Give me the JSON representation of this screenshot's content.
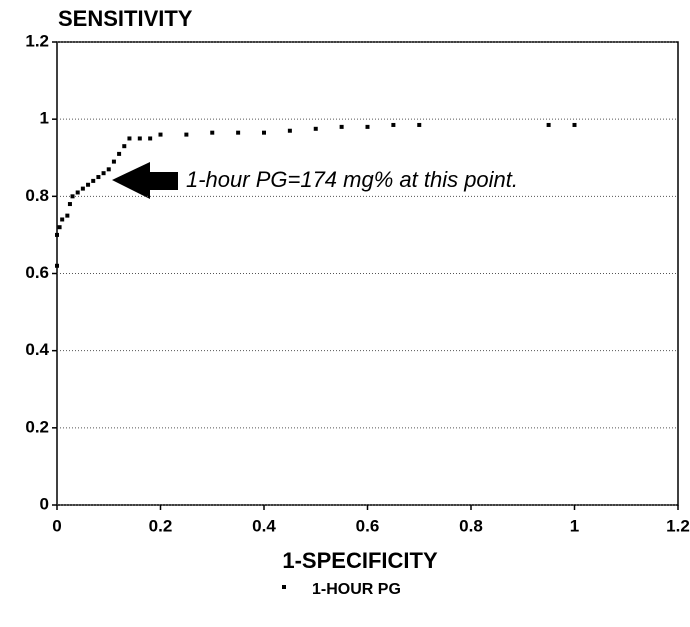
{
  "chart_data": {
    "type": "scatter",
    "title": "SENSITIVITY",
    "x_label": "1-SPECIFICITY",
    "annotation": "1-hour PG=174 mg% at this point.",
    "series": [
      {
        "name": "1-HOUR PG",
        "color": "#000000",
        "x": [
          0,
          0,
          0.005,
          0.01,
          0.02,
          0.025,
          0.03,
          0.04,
          0.05,
          0.06,
          0.07,
          0.08,
          0.09,
          0.1,
          0.11,
          0.12,
          0.13,
          0.14,
          0.16,
          0.18,
          0.2,
          0.25,
          0.3,
          0.35,
          0.4,
          0.45,
          0.5,
          0.55,
          0.6,
          0.65,
          0.7,
          0.95,
          1
        ],
        "values": [
          0.62,
          0.7,
          0.72,
          0.74,
          0.75,
          0.78,
          0.8,
          0.81,
          0.82,
          0.83,
          0.84,
          0.85,
          0.86,
          0.87,
          0.89,
          0.91,
          0.93,
          0.95,
          0.95,
          0.95,
          0.96,
          0.96,
          0.965,
          0.965,
          0.965,
          0.97,
          0.975,
          0.98,
          0.98,
          0.985,
          0.985,
          0.985,
          0.985
        ]
      }
    ],
    "xlim": [
      0,
      1.2
    ],
    "xticks": [
      0,
      0.2,
      0.4,
      0.6,
      0.8,
      1,
      1.2
    ],
    "ylim": [
      0,
      1.2
    ],
    "yticks": [
      0,
      0.2,
      0.4,
      0.6,
      0.8,
      1,
      1.2
    ],
    "grid": true
  }
}
